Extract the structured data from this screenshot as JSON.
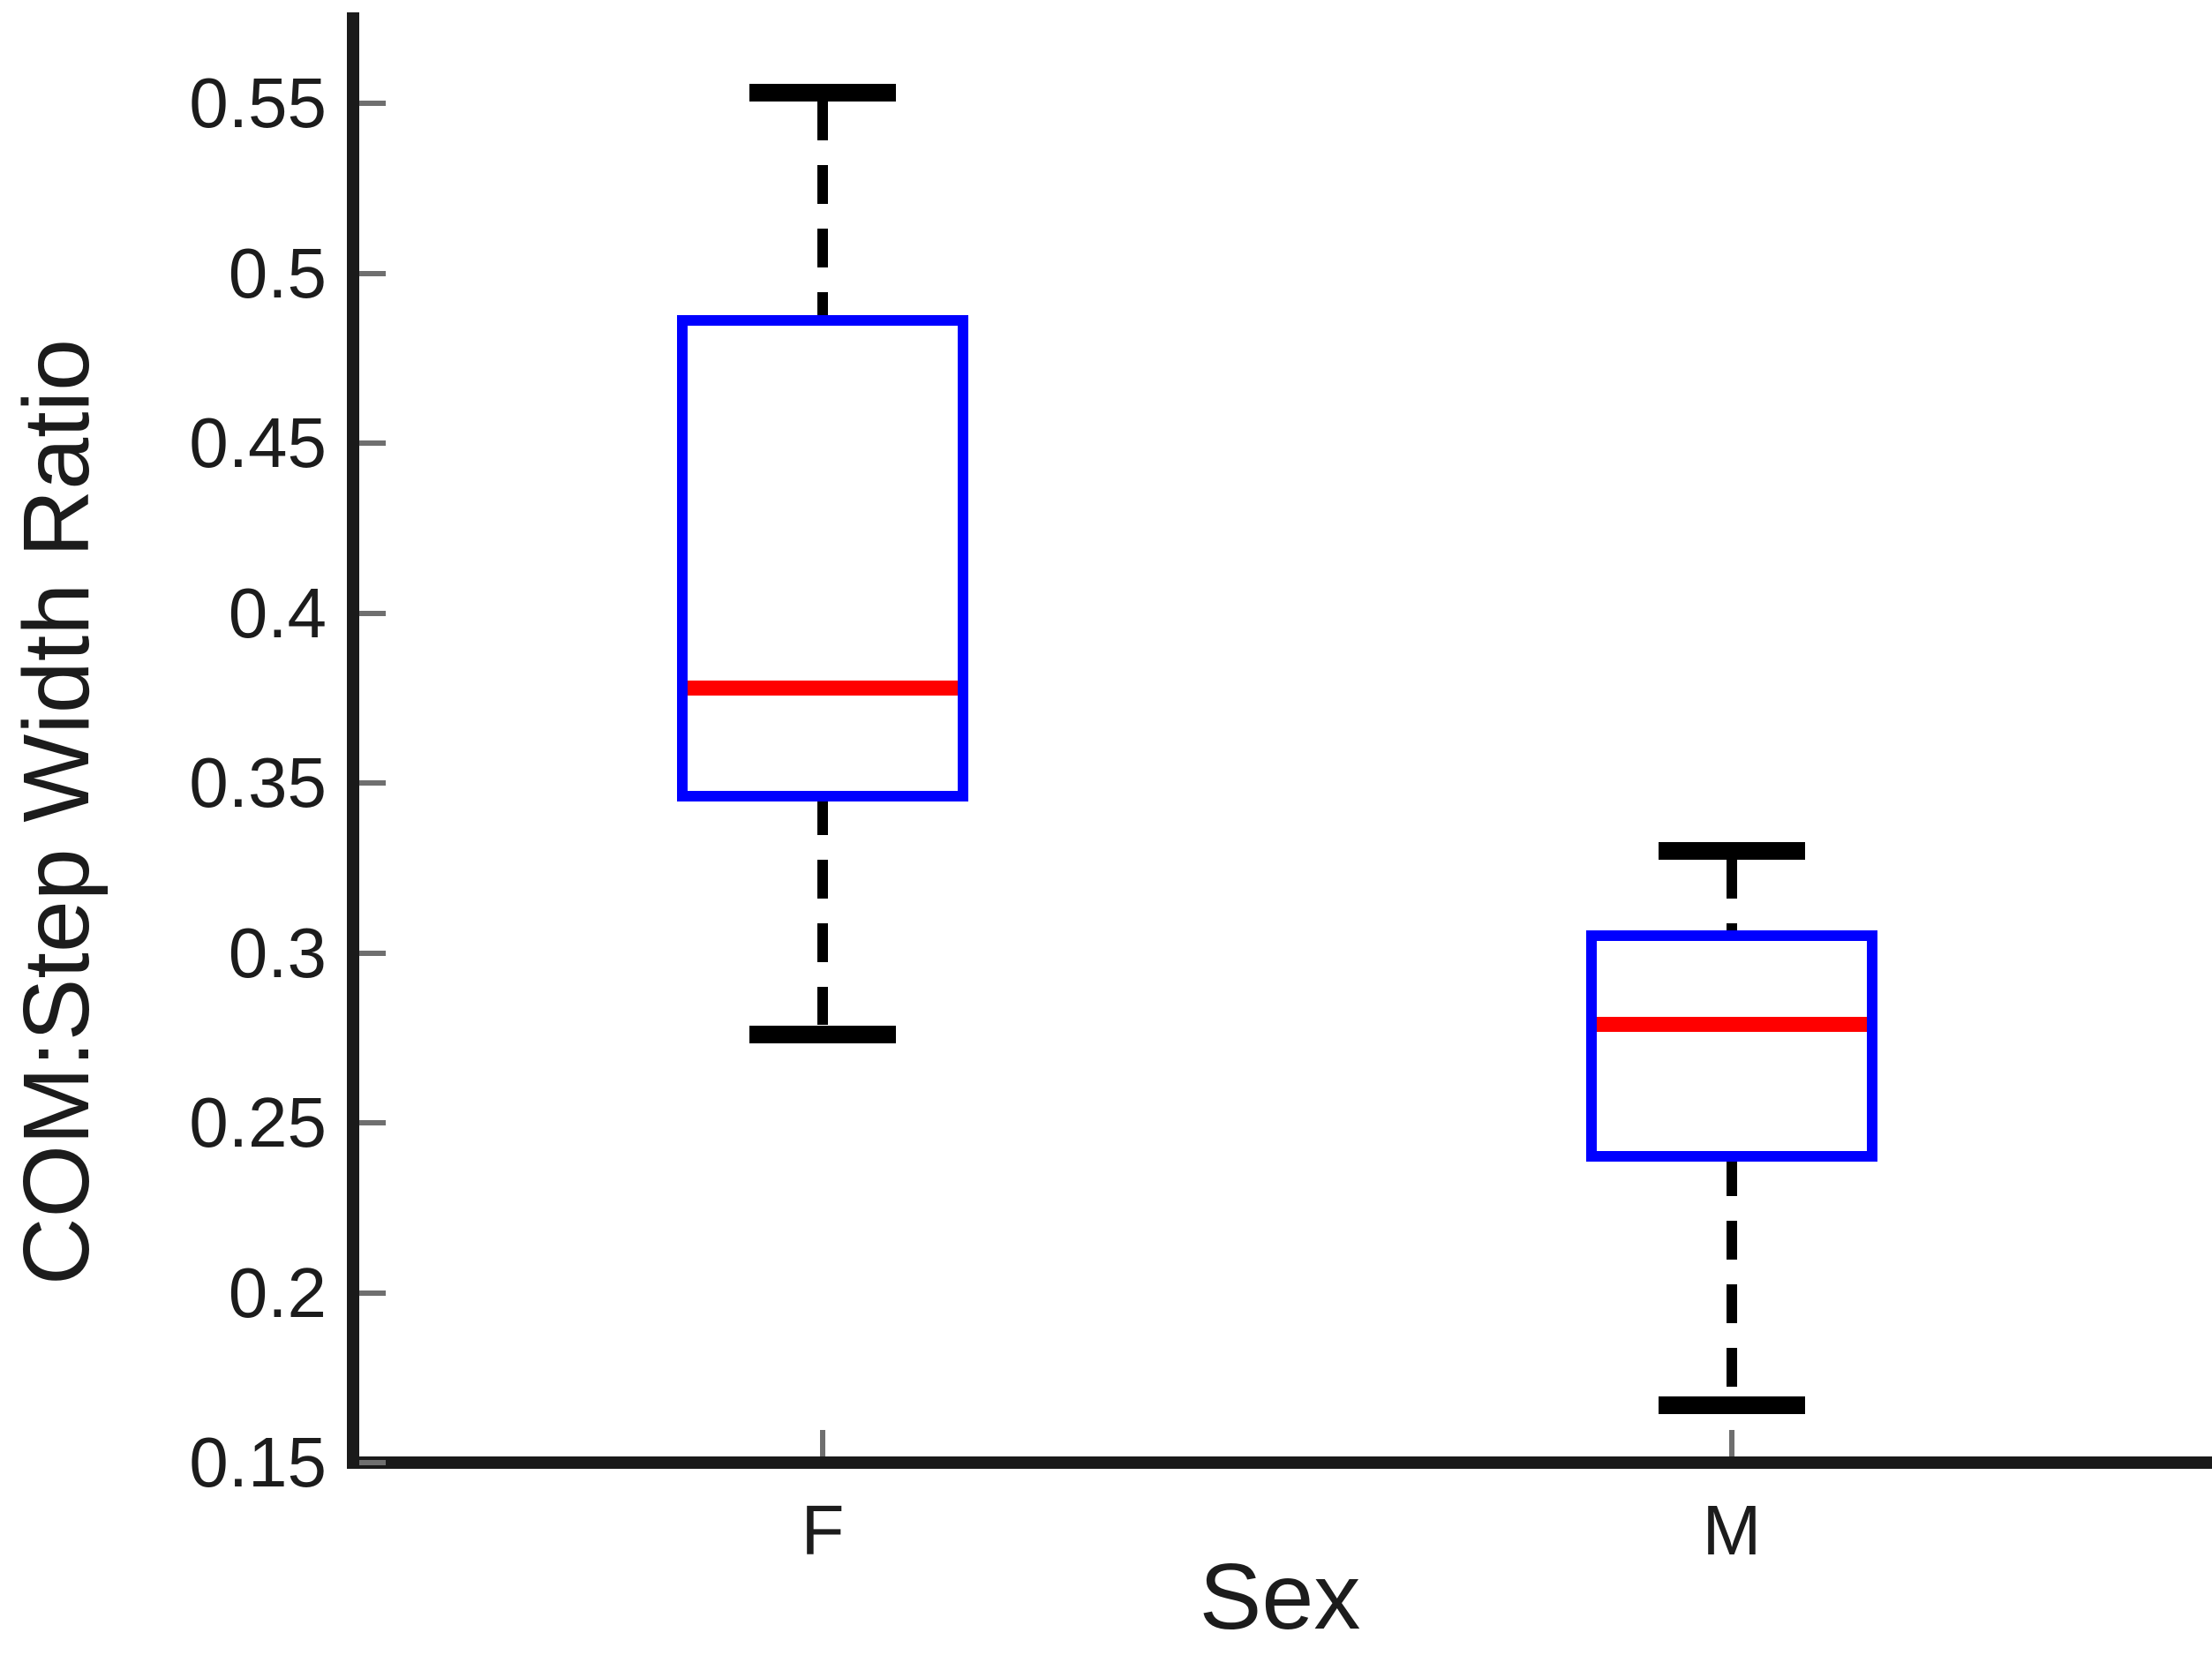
{
  "figure": {
    "background": "#ffffff",
    "axis_color": "#1a1a1a",
    "tick_mark_color": "#6f6f6f",
    "text_color": "#1c1c1c"
  },
  "chart_data": {
    "type": "boxplot",
    "title": "",
    "xlabel": "Sex",
    "ylabel": "COM:Step Width Ratio",
    "categories": [
      "F",
      "M"
    ],
    "ylim": [
      0.15,
      0.575
    ],
    "yticks": [
      0.55,
      0.5,
      0.45,
      0.4,
      0.35,
      0.3,
      0.25,
      0.2,
      0.15
    ],
    "ytick_labels": [
      "0.55",
      "0.5",
      "0.45",
      "0.4",
      "0.35",
      "0.3",
      "0.25",
      "0.2",
      "0.15"
    ],
    "grid": false,
    "legend": null,
    "box_color": "#0000ff",
    "median_color": "#ff0000",
    "whisker_color": "#000000",
    "series": [
      {
        "category": "F",
        "whisker_low": 0.276,
        "q1": 0.346,
        "median": 0.378,
        "q3": 0.486,
        "whisker_high": 0.553
      },
      {
        "category": "M",
        "whisker_low": 0.167,
        "q1": 0.24,
        "median": 0.279,
        "q3": 0.305,
        "whisker_high": 0.33
      }
    ]
  }
}
